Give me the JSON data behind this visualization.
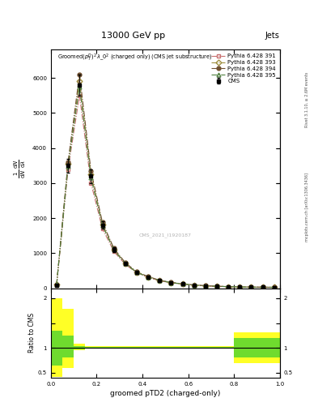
{
  "title_top": "13000 GeV pp",
  "title_top_right": "Jets",
  "plot_title": "Groomed$(p_T^D)^2\\,\\lambda\\_0^2$ (charged only) (CMS jet substructure)",
  "xlabel": "groomed pTD2 (charged-only)",
  "ylabel": "1 / mathrm{d}N / mathrm{d}lambda",
  "ylabel_ratio": "Ratio to CMS",
  "right_label_top": "Rivet 3.1.10, ≥ 2.6M events",
  "right_label_bottom": "mcplots.cern.ch [arXiv:1306.3436]",
  "legend": [
    "CMS",
    "Pythia 6.428 391",
    "Pythia 6.428 393",
    "Pythia 6.428 394",
    "Pythia 6.428 395"
  ],
  "bin_edges": [
    0.0,
    0.05,
    0.1,
    0.15,
    0.2,
    0.25,
    0.3,
    0.35,
    0.4,
    0.45,
    0.5,
    0.55,
    0.6,
    0.65,
    0.7,
    0.75,
    0.8,
    0.85,
    0.9,
    0.95,
    1.0
  ],
  "cms_values": [
    80,
    3500,
    5800,
    3200,
    1800,
    1100,
    700,
    450,
    320,
    220,
    160,
    120,
    90,
    70,
    55,
    45,
    38,
    32,
    28,
    25
  ],
  "cms_errors": [
    20,
    200,
    300,
    200,
    100,
    60,
    40,
    30,
    20,
    15,
    12,
    10,
    8,
    7,
    5,
    4,
    4,
    3,
    3,
    3
  ],
  "py391_values": [
    90,
    3400,
    5500,
    3000,
    1700,
    1050,
    680,
    440,
    310,
    215,
    155,
    118,
    88,
    68,
    53,
    44,
    37,
    31,
    27,
    24
  ],
  "py393_values": [
    100,
    3550,
    5900,
    3250,
    1820,
    1110,
    710,
    455,
    325,
    222,
    162,
    122,
    92,
    71,
    56,
    46,
    39,
    33,
    29,
    26
  ],
  "py394_values": [
    105,
    3600,
    6100,
    3350,
    1880,
    1140,
    730,
    465,
    335,
    228,
    166,
    125,
    94,
    73,
    57,
    47,
    40,
    34,
    30,
    27
  ],
  "py395_values": [
    95,
    3480,
    5750,
    3150,
    1790,
    1090,
    700,
    450,
    320,
    220,
    160,
    121,
    91,
    70,
    55,
    45,
    38,
    32,
    28,
    25
  ],
  "ratio_yellow_lo": [
    0.42,
    0.6,
    0.96,
    0.99,
    0.99,
    0.99,
    0.99,
    0.99,
    0.99,
    0.99,
    0.99,
    0.99,
    0.99,
    0.99,
    0.99,
    0.99,
    0.7,
    0.7,
    0.7,
    0.7
  ],
  "ratio_yellow_hi": [
    2.0,
    1.78,
    1.08,
    1.04,
    1.04,
    1.04,
    1.04,
    1.04,
    1.04,
    1.04,
    1.04,
    1.04,
    1.04,
    1.04,
    1.04,
    1.04,
    1.32,
    1.32,
    1.32,
    1.32
  ],
  "ratio_green_lo": [
    0.65,
    0.8,
    0.97,
    1.0,
    1.0,
    1.0,
    1.0,
    1.0,
    1.0,
    1.0,
    1.0,
    1.0,
    1.0,
    1.0,
    1.0,
    1.0,
    0.8,
    0.8,
    0.8,
    0.8
  ],
  "ratio_green_hi": [
    1.35,
    1.25,
    1.04,
    1.02,
    1.02,
    1.02,
    1.02,
    1.02,
    1.02,
    1.02,
    1.02,
    1.02,
    1.02,
    1.02,
    1.02,
    1.02,
    1.2,
    1.2,
    1.2,
    1.2
  ],
  "color_391": "#c87070",
  "color_393": "#a09040",
  "color_394": "#705030",
  "color_395": "#508040",
  "marker_391": "s",
  "marker_393": "D",
  "marker_394": "o",
  "marker_395": "^",
  "ls_391": "-.",
  "ls_393": "-.",
  "ls_394": "-.",
  "ls_395": "-.",
  "background_color": "#ffffff",
  "ylim_main_max": 6800,
  "yticks_main": [
    0,
    1000,
    2000,
    3000,
    4000,
    5000,
    6000
  ],
  "ylim_ratio_lo": 0.4,
  "ylim_ratio_hi": 2.2,
  "watermark": "CMS_2021_I1920187"
}
